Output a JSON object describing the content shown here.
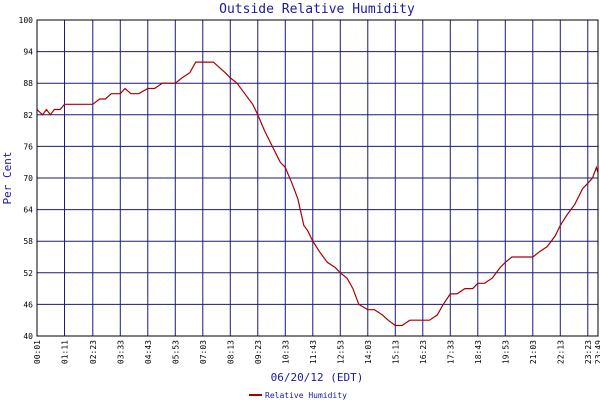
{
  "chart_data": {
    "type": "line",
    "title": "Outside Relative Humidity",
    "xlabel": "06/20/12 (EDT)",
    "ylabel": "Per Cent",
    "ylim": [
      40,
      100
    ],
    "yticks": [
      40,
      46,
      52,
      58,
      64,
      70,
      76,
      82,
      88,
      94,
      100
    ],
    "xlim": [
      "00:01",
      "23:49"
    ],
    "xtick_labels": [
      "00:01",
      "01:11",
      "02:23",
      "03:33",
      "04:43",
      "05:53",
      "07:03",
      "08:13",
      "09:23",
      "10:33",
      "11:43",
      "12:53",
      "14:03",
      "15:13",
      "16:23",
      "17:33",
      "18:43",
      "19:53",
      "21:03",
      "22:13",
      "23:23",
      "23:49"
    ],
    "grid": true,
    "legend_position": "bottom-center",
    "series": [
      {
        "name": "Relative Humidity",
        "color": "#aa0000",
        "points": [
          [
            "00:01",
            83
          ],
          [
            "00:15",
            82
          ],
          [
            "00:25",
            83
          ],
          [
            "00:35",
            82
          ],
          [
            "00:45",
            83
          ],
          [
            "01:00",
            83
          ],
          [
            "01:11",
            84
          ],
          [
            "01:40",
            84
          ],
          [
            "02:10",
            84
          ],
          [
            "02:23",
            84
          ],
          [
            "02:40",
            85
          ],
          [
            "02:55",
            85
          ],
          [
            "03:10",
            86
          ],
          [
            "03:33",
            86
          ],
          [
            "03:45",
            87
          ],
          [
            "04:00",
            86
          ],
          [
            "04:20",
            86
          ],
          [
            "04:43",
            87
          ],
          [
            "05:00",
            87
          ],
          [
            "05:20",
            88
          ],
          [
            "05:53",
            88
          ],
          [
            "06:10",
            89
          ],
          [
            "06:30",
            90
          ],
          [
            "06:45",
            92
          ],
          [
            "07:03",
            92
          ],
          [
            "07:30",
            92
          ],
          [
            "07:45",
            91
          ],
          [
            "08:00",
            90
          ],
          [
            "08:13",
            89
          ],
          [
            "08:30",
            88
          ],
          [
            "08:50",
            86
          ],
          [
            "09:10",
            84
          ],
          [
            "09:23",
            82
          ],
          [
            "09:40",
            79
          ],
          [
            "10:00",
            76
          ],
          [
            "10:20",
            73
          ],
          [
            "10:33",
            72
          ],
          [
            "10:50",
            69
          ],
          [
            "11:05",
            66
          ],
          [
            "11:20",
            61
          ],
          [
            "11:30",
            60
          ],
          [
            "11:43",
            58
          ],
          [
            "12:00",
            56
          ],
          [
            "12:20",
            54
          ],
          [
            "12:40",
            53
          ],
          [
            "12:53",
            52
          ],
          [
            "13:10",
            51
          ],
          [
            "13:25",
            49
          ],
          [
            "13:40",
            46
          ],
          [
            "14:03",
            45
          ],
          [
            "14:20",
            45
          ],
          [
            "14:40",
            44
          ],
          [
            "14:55",
            43
          ],
          [
            "15:13",
            42
          ],
          [
            "15:30",
            42
          ],
          [
            "15:50",
            43
          ],
          [
            "16:10",
            43
          ],
          [
            "16:23",
            43
          ],
          [
            "16:40",
            43
          ],
          [
            "17:00",
            44
          ],
          [
            "17:15",
            46
          ],
          [
            "17:33",
            48
          ],
          [
            "17:50",
            48
          ],
          [
            "18:10",
            49
          ],
          [
            "18:30",
            49
          ],
          [
            "18:43",
            50
          ],
          [
            "19:00",
            50
          ],
          [
            "19:20",
            51
          ],
          [
            "19:40",
            53
          ],
          [
            "19:53",
            54
          ],
          [
            "20:10",
            55
          ],
          [
            "20:30",
            55
          ],
          [
            "20:50",
            55
          ],
          [
            "21:03",
            55
          ],
          [
            "21:20",
            56
          ],
          [
            "21:40",
            57
          ],
          [
            "22:00",
            59
          ],
          [
            "22:13",
            61
          ],
          [
            "22:30",
            63
          ],
          [
            "22:50",
            65
          ],
          [
            "23:10",
            68
          ],
          [
            "23:23",
            69
          ],
          [
            "23:35",
            70
          ],
          [
            "23:45",
            72
          ],
          [
            "23:49",
            71
          ]
        ]
      }
    ]
  }
}
